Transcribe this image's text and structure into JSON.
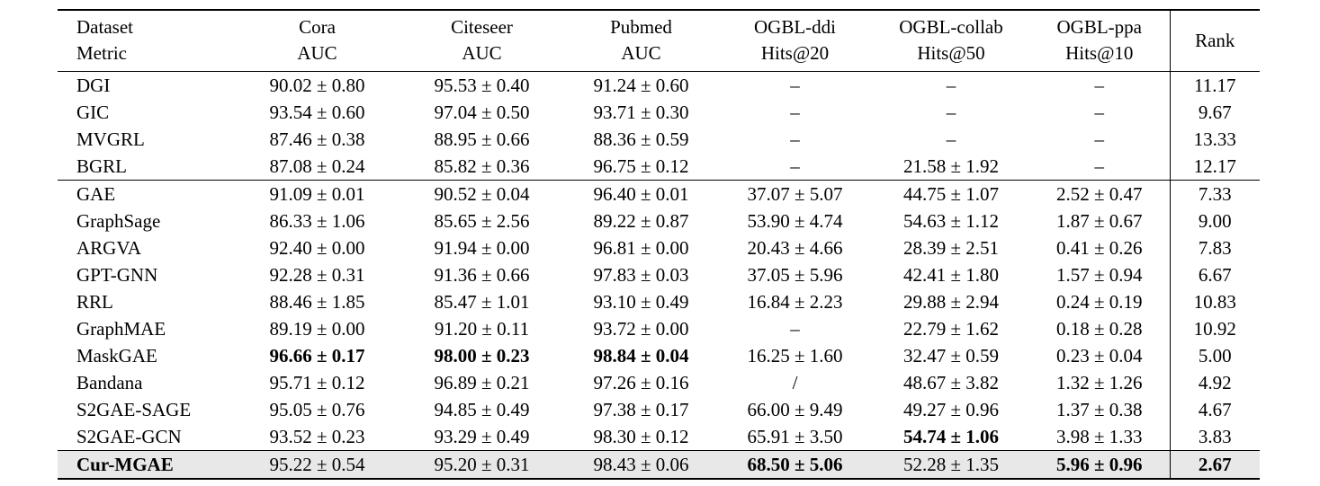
{
  "table": {
    "header": {
      "dataset_label": "Dataset",
      "metric_label": "Metric",
      "columns": [
        {
          "dataset": "Cora",
          "metric": "AUC"
        },
        {
          "dataset": "Citeseer",
          "metric": "AUC"
        },
        {
          "dataset": "Pubmed",
          "metric": "AUC"
        },
        {
          "dataset": "OGBL-ddi",
          "metric": "Hits@20"
        },
        {
          "dataset": "OGBL-collab",
          "metric": "Hits@50"
        },
        {
          "dataset": "OGBL-ppa",
          "metric": "Hits@10"
        }
      ],
      "rank_label": "Rank"
    },
    "groups": [
      {
        "highlight": false,
        "rows": [
          {
            "method": "DGI",
            "bold_method": false,
            "cells": [
              {
                "text": "90.02 ± 0.80",
                "bold": false
              },
              {
                "text": "95.53 ± 0.40",
                "bold": false
              },
              {
                "text": "91.24 ± 0.60",
                "bold": false
              },
              {
                "text": "–",
                "bold": false
              },
              {
                "text": "–",
                "bold": false
              },
              {
                "text": "–",
                "bold": false
              }
            ],
            "rank": "11.17",
            "bold_rank": false
          },
          {
            "method": "GIC",
            "bold_method": false,
            "cells": [
              {
                "text": "93.54 ± 0.60",
                "bold": false
              },
              {
                "text": "97.04 ± 0.50",
                "bold": false
              },
              {
                "text": "93.71 ± 0.30",
                "bold": false
              },
              {
                "text": "–",
                "bold": false
              },
              {
                "text": "–",
                "bold": false
              },
              {
                "text": "–",
                "bold": false
              }
            ],
            "rank": "9.67",
            "bold_rank": false
          },
          {
            "method": "MVGRL",
            "bold_method": false,
            "cells": [
              {
                "text": "87.46 ± 0.38",
                "bold": false
              },
              {
                "text": "88.95 ± 0.66",
                "bold": false
              },
              {
                "text": "88.36 ± 0.59",
                "bold": false
              },
              {
                "text": "–",
                "bold": false
              },
              {
                "text": "–",
                "bold": false
              },
              {
                "text": "–",
                "bold": false
              }
            ],
            "rank": "13.33",
            "bold_rank": false
          },
          {
            "method": "BGRL",
            "bold_method": false,
            "cells": [
              {
                "text": "87.08 ± 0.24",
                "bold": false
              },
              {
                "text": "85.82 ± 0.36",
                "bold": false
              },
              {
                "text": "96.75 ± 0.12",
                "bold": false
              },
              {
                "text": "–",
                "bold": false
              },
              {
                "text": "21.58 ± 1.92",
                "bold": false
              },
              {
                "text": "–",
                "bold": false
              }
            ],
            "rank": "12.17",
            "bold_rank": false
          }
        ]
      },
      {
        "highlight": false,
        "rows": [
          {
            "method": "GAE",
            "bold_method": false,
            "cells": [
              {
                "text": "91.09 ± 0.01",
                "bold": false
              },
              {
                "text": "90.52 ± 0.04",
                "bold": false
              },
              {
                "text": "96.40 ± 0.01",
                "bold": false
              },
              {
                "text": "37.07 ± 5.07",
                "bold": false
              },
              {
                "text": "44.75 ± 1.07",
                "bold": false
              },
              {
                "text": "2.52 ± 0.47",
                "bold": false
              }
            ],
            "rank": "7.33",
            "bold_rank": false
          },
          {
            "method": "GraphSage",
            "bold_method": false,
            "cells": [
              {
                "text": "86.33 ± 1.06",
                "bold": false
              },
              {
                "text": "85.65 ± 2.56",
                "bold": false
              },
              {
                "text": "89.22 ± 0.87",
                "bold": false
              },
              {
                "text": "53.90 ± 4.74",
                "bold": false
              },
              {
                "text": "54.63 ± 1.12",
                "bold": false
              },
              {
                "text": "1.87 ± 0.67",
                "bold": false
              }
            ],
            "rank": "9.00",
            "bold_rank": false
          },
          {
            "method": "ARGVA",
            "bold_method": false,
            "cells": [
              {
                "text": "92.40 ± 0.00",
                "bold": false
              },
              {
                "text": "91.94 ± 0.00",
                "bold": false
              },
              {
                "text": "96.81 ± 0.00",
                "bold": false
              },
              {
                "text": "20.43 ± 4.66",
                "bold": false
              },
              {
                "text": "28.39 ± 2.51",
                "bold": false
              },
              {
                "text": "0.41 ± 0.26",
                "bold": false
              }
            ],
            "rank": "7.83",
            "bold_rank": false
          },
          {
            "method": "GPT-GNN",
            "bold_method": false,
            "cells": [
              {
                "text": "92.28 ± 0.31",
                "bold": false
              },
              {
                "text": "91.36 ± 0.66",
                "bold": false
              },
              {
                "text": "97.83 ± 0.03",
                "bold": false
              },
              {
                "text": "37.05 ± 5.96",
                "bold": false
              },
              {
                "text": "42.41 ± 1.80",
                "bold": false
              },
              {
                "text": "1.57 ± 0.94",
                "bold": false
              }
            ],
            "rank": "6.67",
            "bold_rank": false
          },
          {
            "method": "RRL",
            "bold_method": false,
            "cells": [
              {
                "text": "88.46 ± 1.85",
                "bold": false
              },
              {
                "text": "85.47 ± 1.01",
                "bold": false
              },
              {
                "text": "93.10 ± 0.49",
                "bold": false
              },
              {
                "text": "16.84 ± 2.23",
                "bold": false
              },
              {
                "text": "29.88 ± 2.94",
                "bold": false
              },
              {
                "text": "0.24 ± 0.19",
                "bold": false
              }
            ],
            "rank": "10.83",
            "bold_rank": false
          },
          {
            "method": "GraphMAE",
            "bold_method": false,
            "cells": [
              {
                "text": "89.19 ± 0.00",
                "bold": false
              },
              {
                "text": "91.20 ± 0.11",
                "bold": false
              },
              {
                "text": "93.72 ± 0.00",
                "bold": false
              },
              {
                "text": "–",
                "bold": false
              },
              {
                "text": "22.79 ± 1.62",
                "bold": false
              },
              {
                "text": "0.18 ± 0.28",
                "bold": false
              }
            ],
            "rank": "10.92",
            "bold_rank": false
          },
          {
            "method": "MaskGAE",
            "bold_method": false,
            "cells": [
              {
                "text": "96.66 ± 0.17",
                "bold": true
              },
              {
                "text": "98.00 ± 0.23",
                "bold": true
              },
              {
                "text": "98.84 ± 0.04",
                "bold": true
              },
              {
                "text": "16.25 ± 1.60",
                "bold": false
              },
              {
                "text": "32.47 ± 0.59",
                "bold": false
              },
              {
                "text": "0.23 ± 0.04",
                "bold": false
              }
            ],
            "rank": "5.00",
            "bold_rank": false
          },
          {
            "method": "Bandana",
            "bold_method": false,
            "cells": [
              {
                "text": "95.71 ± 0.12",
                "bold": false
              },
              {
                "text": "96.89 ± 0.21",
                "bold": false
              },
              {
                "text": "97.26 ± 0.16",
                "bold": false
              },
              {
                "text": "/",
                "bold": false
              },
              {
                "text": "48.67 ± 3.82",
                "bold": false
              },
              {
                "text": "1.32 ± 1.26",
                "bold": false
              }
            ],
            "rank": "4.92",
            "bold_rank": false
          },
          {
            "method": "S2GAE-SAGE",
            "bold_method": false,
            "cells": [
              {
                "text": "95.05 ± 0.76",
                "bold": false
              },
              {
                "text": "94.85 ± 0.49",
                "bold": false
              },
              {
                "text": "97.38 ± 0.17",
                "bold": false
              },
              {
                "text": "66.00 ± 9.49",
                "bold": false
              },
              {
                "text": "49.27 ± 0.96",
                "bold": false
              },
              {
                "text": "1.37 ± 0.38",
                "bold": false
              }
            ],
            "rank": "4.67",
            "bold_rank": false
          },
          {
            "method": "S2GAE-GCN",
            "bold_method": false,
            "cells": [
              {
                "text": "93.52 ± 0.23",
                "bold": false
              },
              {
                "text": "93.29 ± 0.49",
                "bold": false
              },
              {
                "text": "98.30 ± 0.12",
                "bold": false
              },
              {
                "text": "65.91 ± 3.50",
                "bold": false
              },
              {
                "text": "54.74 ± 1.06",
                "bold": true
              },
              {
                "text": "3.98 ± 1.33",
                "bold": false
              }
            ],
            "rank": "3.83",
            "bold_rank": false
          }
        ]
      },
      {
        "highlight": true,
        "rows": [
          {
            "method": "Cur-MGAE",
            "bold_method": true,
            "cells": [
              {
                "text": "95.22 ± 0.54",
                "bold": false
              },
              {
                "text": "95.20 ± 0.31",
                "bold": false
              },
              {
                "text": "98.43 ± 0.06",
                "bold": false
              },
              {
                "text": "68.50 ± 5.06",
                "bold": true
              },
              {
                "text": "52.28 ± 1.35",
                "bold": false
              },
              {
                "text": "5.96 ± 0.96",
                "bold": true
              }
            ],
            "rank": "2.67",
            "bold_rank": true
          }
        ]
      }
    ],
    "highlight_color": "#e8e8e8"
  }
}
